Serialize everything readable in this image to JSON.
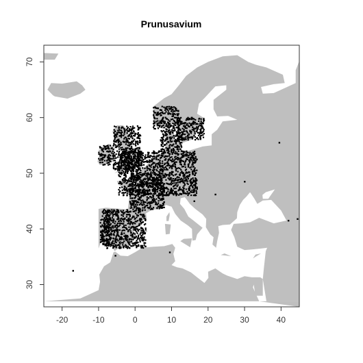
{
  "chart_data": {
    "type": "scatter",
    "title": "Prunusavium",
    "xlim": [
      -25,
      45
    ],
    "ylim": [
      26,
      73
    ],
    "x_ticks": [
      -20,
      -10,
      0,
      10,
      20,
      30,
      40
    ],
    "y_ticks": [
      30,
      40,
      50,
      60,
      70
    ],
    "x_tick_labels": [
      "-20",
      "-10",
      "0",
      "10",
      "20",
      "30",
      "40"
    ],
    "y_tick_labels": [
      "30",
      "40",
      "50",
      "60",
      "70"
    ],
    "background_map": "Europe land mass (grey)",
    "colors": {
      "land": "#bfbfbf",
      "sea": "#ffffff",
      "points": "#000000"
    },
    "series": [
      {
        "occurrence_regions": [
          {
            "lon": [
              -10,
              -6
            ],
            "lat": [
              51.5,
              55
            ]
          },
          {
            "lon": [
              -6,
              1.5
            ],
            "lat": [
              50.5,
              58.5
            ]
          },
          {
            "lon": [
              -4.5,
              17
            ],
            "lat": [
              46,
              54
            ]
          },
          {
            "lon": [
              -1.5,
              8
            ],
            "lat": [
              43.5,
              50
            ]
          },
          {
            "lon": [
              7,
              13
            ],
            "lat": [
              54,
              58
            ]
          },
          {
            "lon": [
              11.5,
              19
            ],
            "lat": [
              56,
              60
            ]
          },
          {
            "lon": [
              5,
              12
            ],
            "lat": [
              58,
              62
            ]
          },
          {
            "lon": [
              -9,
              3
            ],
            "lat": [
              36.5,
              43.5
            ]
          },
          {
            "lon": [
              -9.5,
              -7
            ],
            "lat": [
              37,
              42
            ]
          }
        ],
        "outliers": [
          {
            "lon": -17,
            "lat": 32.5
          },
          {
            "lon": 39.5,
            "lat": 55.5
          },
          {
            "lon": 42,
            "lat": 41.5
          },
          {
            "lon": 44.5,
            "lat": 41.8
          },
          {
            "lon": 30,
            "lat": 48.5
          },
          {
            "lon": 22,
            "lat": 46.2
          },
          {
            "lon": 16.2,
            "lat": 45
          },
          {
            "lon": 9.5,
            "lat": 35.8
          },
          {
            "lon": -5.4,
            "lat": 35.2
          }
        ]
      }
    ]
  }
}
